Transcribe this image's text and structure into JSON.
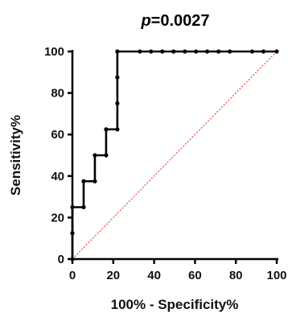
{
  "chart_data": {
    "type": "line",
    "title": {
      "italic": "p",
      "rest": "=0.0027"
    },
    "xlabel": "100% - Specificity%",
    "ylabel": "Sensitivity%",
    "xlim": [
      0,
      100
    ],
    "ylim": [
      0,
      100
    ],
    "x_ticks": [
      "0",
      "20",
      "40",
      "60",
      "80",
      "100"
    ],
    "y_ticks": [
      "0",
      "20",
      "40",
      "60",
      "80",
      "100"
    ],
    "grid": false,
    "series": [
      {
        "kind": "roc-step",
        "color": "#000000",
        "points": [
          [
            0,
            0
          ],
          [
            0,
            12.5
          ],
          [
            0,
            25
          ],
          [
            5.5,
            25
          ],
          [
            5.5,
            37.5
          ],
          [
            11,
            37.5
          ],
          [
            11,
            50
          ],
          [
            16.5,
            50
          ],
          [
            16.5,
            62.5
          ],
          [
            22,
            62.5
          ],
          [
            22,
            75
          ],
          [
            22,
            87.5
          ],
          [
            22,
            100
          ],
          [
            33,
            100
          ],
          [
            38.5,
            100
          ],
          [
            44,
            100
          ],
          [
            49.5,
            100
          ],
          [
            55,
            100
          ],
          [
            60.5,
            100
          ],
          [
            66,
            100
          ],
          [
            71.5,
            100
          ],
          [
            77,
            100
          ],
          [
            88,
            100
          ],
          [
            93.5,
            100
          ],
          [
            100,
            100
          ]
        ]
      },
      {
        "kind": "reference-diagonal",
        "color": "#e8443a",
        "style": "dotted",
        "points": [
          [
            0,
            0
          ],
          [
            100,
            100
          ]
        ]
      }
    ]
  }
}
